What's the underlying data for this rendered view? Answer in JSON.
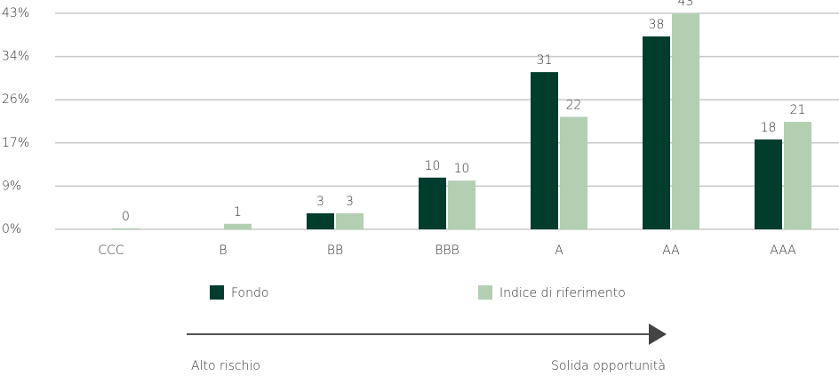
{
  "chart_data": {
    "type": "bar",
    "categories": [
      "CCC",
      "B",
      "BB",
      "BBB",
      "A",
      "AA",
      "AAA"
    ],
    "series": [
      {
        "name": "Fondo",
        "color": "#003d2e",
        "values": [
          null,
          null,
          3.2,
          10.3,
          31.3,
          38.4,
          17.9
        ],
        "value_labels": [
          null,
          null,
          "3",
          "10",
          "31",
          "38",
          "18"
        ]
      },
      {
        "name": "Indice di riferimento",
        "color": "#b3cfb1",
        "values": [
          0.2,
          1.1,
          3.2,
          9.7,
          22.4,
          43,
          21.4
        ],
        "value_labels": [
          "0",
          "1",
          "3",
          "10",
          "22",
          "43",
          "21"
        ]
      }
    ],
    "ylim": [
      0,
      43
    ],
    "yticks": [
      {
        "value": 0,
        "label": "0%"
      },
      {
        "value": 8.6,
        "label": "9%"
      },
      {
        "value": 17.2,
        "label": "17%"
      },
      {
        "value": 25.8,
        "label": "26%"
      },
      {
        "value": 34.4,
        "label": "34%"
      },
      {
        "value": 43,
        "label": "43%"
      }
    ],
    "grid": true,
    "annotations": [
      "Alto rischio",
      "Solida opportunità"
    ]
  }
}
